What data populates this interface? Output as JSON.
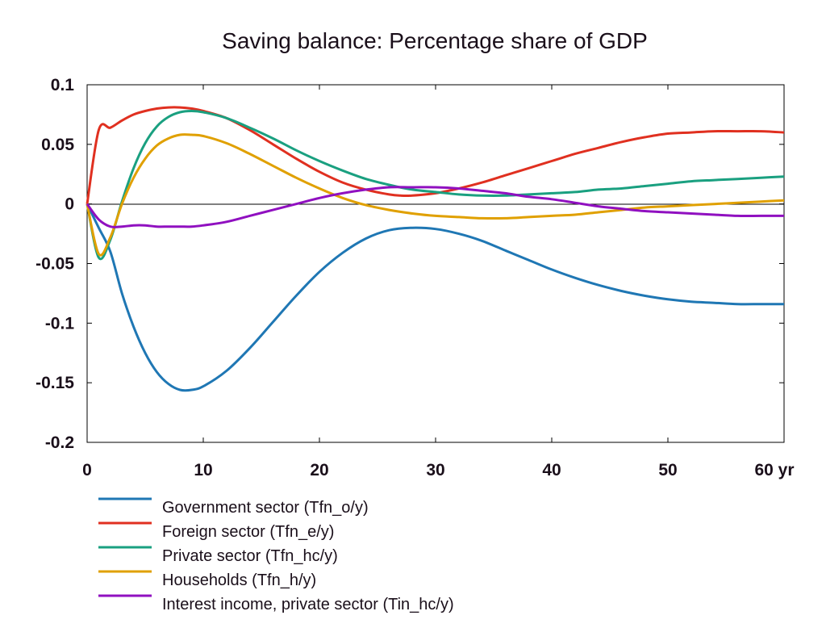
{
  "chart_data": {
    "type": "line",
    "title": "Saving balance: Percentage share of GDP",
    "xlabel": "",
    "ylabel": "",
    "x_unit_label": "yr",
    "xlim": [
      0,
      60
    ],
    "ylim": [
      -0.2,
      0.1
    ],
    "x_ticks": [
      0,
      10,
      20,
      30,
      40,
      50,
      60
    ],
    "x_tick_labels": [
      "0",
      "10",
      "20",
      "30",
      "40",
      "50",
      "60 yr"
    ],
    "y_ticks": [
      0.1,
      0.05,
      0,
      -0.05,
      -0.1,
      -0.15,
      -0.2
    ],
    "y_tick_labels": [
      "0.1",
      "0.05",
      "0",
      "-0.05",
      "-0.1",
      "-0.15",
      "-0.2"
    ],
    "grid": false,
    "zero_line": true,
    "legend_position": "bottom-left",
    "series": [
      {
        "name": "Government sector (Tfn_o/y)",
        "color": "#1f77b4",
        "x": [
          0,
          1,
          2,
          3,
          4,
          5,
          6,
          7,
          8,
          9,
          10,
          12,
          14,
          16,
          18,
          20,
          22,
          24,
          26,
          28,
          30,
          32,
          34,
          36,
          38,
          40,
          42,
          44,
          46,
          48,
          50,
          52,
          54,
          56,
          58,
          60
        ],
        "values": [
          0,
          -0.02,
          -0.04,
          -0.075,
          -0.103,
          -0.125,
          -0.141,
          -0.151,
          -0.156,
          -0.156,
          -0.153,
          -0.14,
          -0.121,
          -0.099,
          -0.077,
          -0.057,
          -0.041,
          -0.029,
          -0.022,
          -0.02,
          -0.021,
          -0.025,
          -0.031,
          -0.039,
          -0.047,
          -0.055,
          -0.062,
          -0.068,
          -0.073,
          -0.077,
          -0.08,
          -0.082,
          -0.083,
          -0.084,
          -0.084,
          -0.084
        ]
      },
      {
        "name": "Foreign sector (Tfn_e/y)",
        "color": "#e03020",
        "x": [
          0,
          1,
          2,
          3,
          4,
          5,
          6,
          7,
          8,
          9,
          10,
          12,
          14,
          16,
          18,
          20,
          22,
          24,
          26,
          27,
          28,
          30,
          32,
          34,
          36,
          38,
          40,
          42,
          44,
          46,
          48,
          50,
          52,
          54,
          56,
          58,
          60
        ],
        "values": [
          0,
          0.062,
          0.064,
          0.07,
          0.075,
          0.078,
          0.08,
          0.081,
          0.081,
          0.08,
          0.078,
          0.072,
          0.062,
          0.05,
          0.038,
          0.027,
          0.018,
          0.012,
          0.008,
          0.007,
          0.007,
          0.009,
          0.013,
          0.018,
          0.024,
          0.03,
          0.036,
          0.042,
          0.047,
          0.052,
          0.056,
          0.059,
          0.06,
          0.061,
          0.061,
          0.061,
          0.06
        ]
      },
      {
        "name": "Private sector (Tfn_hc/y)",
        "color": "#1aa080",
        "x": [
          0,
          1,
          2,
          3,
          4,
          5,
          6,
          7,
          8,
          9,
          10,
          12,
          14,
          16,
          18,
          20,
          22,
          24,
          26,
          28,
          30,
          32,
          34,
          36,
          38,
          40,
          42,
          44,
          46,
          48,
          50,
          52,
          54,
          56,
          58,
          60
        ],
        "values": [
          0,
          -0.045,
          -0.03,
          0.002,
          0.03,
          0.051,
          0.065,
          0.073,
          0.077,
          0.078,
          0.077,
          0.072,
          0.064,
          0.055,
          0.045,
          0.036,
          0.028,
          0.021,
          0.016,
          0.012,
          0.01,
          0.008,
          0.007,
          0.007,
          0.008,
          0.009,
          0.01,
          0.012,
          0.013,
          0.015,
          0.017,
          0.019,
          0.02,
          0.021,
          0.022,
          0.023
        ]
      },
      {
        "name": "Households (Tfn_h/y)",
        "color": "#e0a000",
        "x": [
          0,
          1,
          2,
          3,
          4,
          5,
          6,
          7,
          8,
          9,
          10,
          12,
          14,
          16,
          18,
          20,
          22,
          24,
          26,
          28,
          30,
          32,
          34,
          36,
          38,
          40,
          42,
          44,
          46,
          48,
          50,
          52,
          54,
          56,
          58,
          60
        ],
        "values": [
          0,
          -0.042,
          -0.028,
          0.0,
          0.022,
          0.038,
          0.049,
          0.055,
          0.058,
          0.058,
          0.057,
          0.051,
          0.042,
          0.032,
          0.022,
          0.013,
          0.005,
          -0.001,
          -0.005,
          -0.008,
          -0.01,
          -0.011,
          -0.012,
          -0.012,
          -0.011,
          -0.01,
          -0.009,
          -0.007,
          -0.005,
          -0.003,
          -0.002,
          -0.001,
          0.0,
          0.001,
          0.002,
          0.003
        ]
      },
      {
        "name": "Interest income, private sector (Tin_hc/y)",
        "color": "#9010c0",
        "x": [
          0,
          1,
          2,
          3,
          4,
          5,
          6,
          7,
          8,
          9,
          10,
          12,
          14,
          16,
          18,
          20,
          22,
          24,
          26,
          28,
          30,
          32,
          34,
          36,
          38,
          40,
          42,
          44,
          46,
          48,
          50,
          52,
          54,
          56,
          58,
          60
        ],
        "values": [
          0,
          -0.013,
          -0.019,
          -0.019,
          -0.018,
          -0.018,
          -0.019,
          -0.019,
          -0.019,
          -0.019,
          -0.018,
          -0.015,
          -0.01,
          -0.005,
          0.0,
          0.005,
          0.009,
          0.012,
          0.014,
          0.014,
          0.014,
          0.013,
          0.011,
          0.009,
          0.006,
          0.004,
          0.001,
          -0.002,
          -0.004,
          -0.006,
          -0.007,
          -0.008,
          -0.009,
          -0.01,
          -0.01,
          -0.01
        ]
      }
    ]
  }
}
